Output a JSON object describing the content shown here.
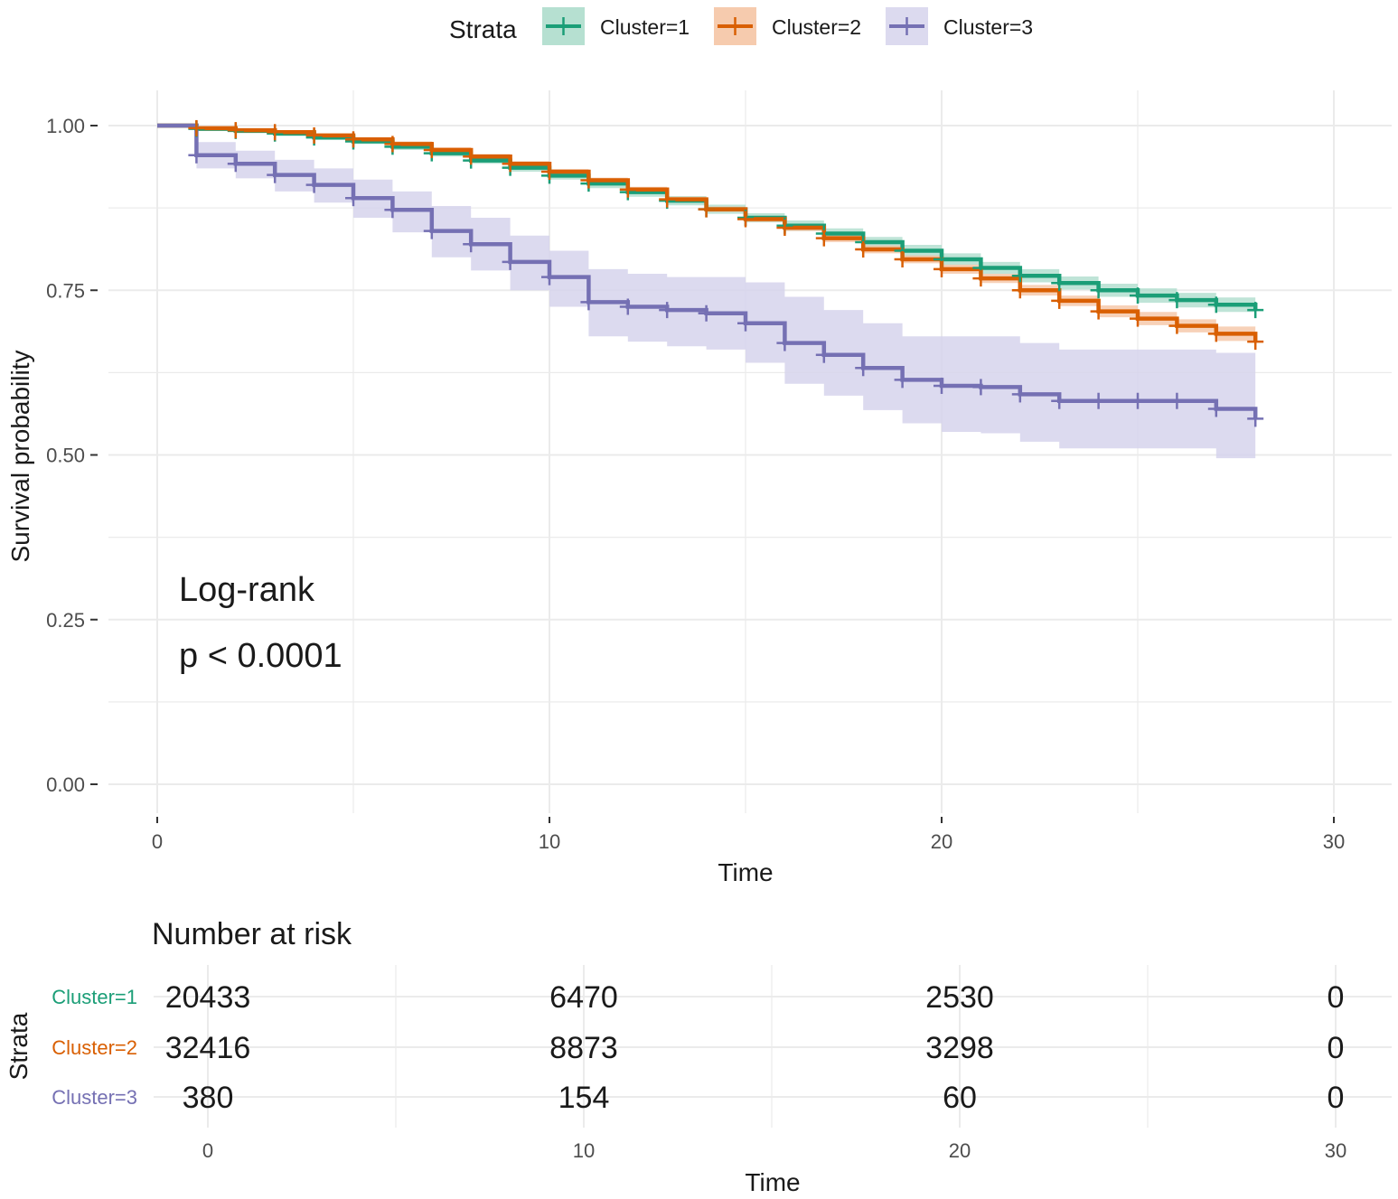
{
  "chart_data": {
    "type": "line",
    "subtype": "kaplan-meier survival curve",
    "ylabel": "Survival probability",
    "xlabel": "Time",
    "xlim": [
      0,
      30
    ],
    "ylim": [
      0,
      1
    ],
    "x_ticks": [
      "0",
      "10",
      "20",
      "30"
    ],
    "y_ticks": [
      "0.00",
      "0.25",
      "0.50",
      "0.75",
      "1.00"
    ],
    "grid": true,
    "legend": {
      "title": "Strata",
      "position": "top",
      "entries": [
        "Cluster=1",
        "Cluster=2",
        "Cluster=3"
      ]
    },
    "annotation": {
      "line1": "Log-rank",
      "line2": "p < 0.0001"
    },
    "series": [
      {
        "name": "Cluster=1",
        "color": "#1b9e77",
        "fill": "#a9dbc9",
        "times": [
          0,
          1,
          2,
          3,
          4,
          5,
          6,
          7,
          8,
          9,
          10,
          11,
          12,
          13,
          14,
          15,
          16,
          17,
          18,
          19,
          20,
          21,
          22,
          23,
          24,
          25,
          26,
          27,
          28
        ],
        "survival": [
          1.0,
          0.995,
          0.992,
          0.988,
          0.982,
          0.976,
          0.968,
          0.958,
          0.947,
          0.936,
          0.924,
          0.912,
          0.899,
          0.886,
          0.873,
          0.86,
          0.848,
          0.836,
          0.823,
          0.81,
          0.797,
          0.784,
          0.772,
          0.761,
          0.75,
          0.742,
          0.735,
          0.728,
          0.72
        ],
        "lower": [
          1.0,
          0.993,
          0.989,
          0.984,
          0.978,
          0.972,
          0.963,
          0.953,
          0.942,
          0.93,
          0.918,
          0.905,
          0.892,
          0.879,
          0.866,
          0.853,
          0.84,
          0.828,
          0.815,
          0.801,
          0.788,
          0.775,
          0.762,
          0.751,
          0.74,
          0.731,
          0.724,
          0.717,
          0.709
        ],
        "upper": [
          1.0,
          0.997,
          0.995,
          0.991,
          0.986,
          0.98,
          0.973,
          0.963,
          0.952,
          0.942,
          0.93,
          0.919,
          0.906,
          0.893,
          0.88,
          0.867,
          0.856,
          0.844,
          0.831,
          0.819,
          0.806,
          0.793,
          0.782,
          0.771,
          0.76,
          0.753,
          0.746,
          0.739,
          0.731
        ]
      },
      {
        "name": "Cluster=2",
        "color": "#d95f02",
        "fill": "#f4c2a0",
        "times": [
          0,
          1,
          2,
          3,
          4,
          5,
          6,
          7,
          8,
          9,
          10,
          11,
          12,
          13,
          14,
          15,
          16,
          17,
          18,
          19,
          20,
          21,
          22,
          23,
          24,
          25,
          26,
          27,
          28
        ],
        "survival": [
          1.0,
          0.996,
          0.993,
          0.99,
          0.985,
          0.979,
          0.972,
          0.963,
          0.953,
          0.942,
          0.93,
          0.917,
          0.903,
          0.888,
          0.873,
          0.858,
          0.845,
          0.829,
          0.812,
          0.797,
          0.782,
          0.768,
          0.75,
          0.734,
          0.718,
          0.707,
          0.696,
          0.684,
          0.672
        ],
        "lower": [
          1.0,
          0.995,
          0.991,
          0.988,
          0.982,
          0.976,
          0.968,
          0.959,
          0.949,
          0.938,
          0.926,
          0.913,
          0.899,
          0.884,
          0.869,
          0.854,
          0.84,
          0.823,
          0.806,
          0.791,
          0.775,
          0.761,
          0.742,
          0.726,
          0.709,
          0.697,
          0.686,
          0.673,
          0.66
        ],
        "upper": [
          1.0,
          0.997,
          0.995,
          0.992,
          0.988,
          0.982,
          0.976,
          0.967,
          0.957,
          0.946,
          0.934,
          0.921,
          0.907,
          0.892,
          0.877,
          0.862,
          0.85,
          0.835,
          0.818,
          0.803,
          0.789,
          0.775,
          0.758,
          0.742,
          0.727,
          0.717,
          0.706,
          0.695,
          0.684
        ]
      },
      {
        "name": "Cluster=3",
        "color": "#7570b3",
        "fill": "#d6d4ec",
        "times": [
          0,
          1,
          2,
          3,
          4,
          5,
          6,
          7,
          8,
          9,
          10,
          11,
          12,
          13,
          14,
          15,
          16,
          17,
          18,
          19,
          20,
          21,
          22,
          23,
          24,
          25,
          26,
          27,
          28
        ],
        "survival": [
          1.0,
          0.955,
          0.942,
          0.925,
          0.91,
          0.89,
          0.872,
          0.84,
          0.82,
          0.793,
          0.77,
          0.732,
          0.725,
          0.72,
          0.715,
          0.7,
          0.67,
          0.652,
          0.632,
          0.614,
          0.605,
          0.603,
          0.592,
          0.582,
          0.582,
          0.582,
          0.582,
          0.57,
          0.555
        ],
        "lower": [
          1.0,
          0.935,
          0.92,
          0.9,
          0.883,
          0.86,
          0.838,
          0.8,
          0.78,
          0.75,
          0.725,
          0.68,
          0.672,
          0.665,
          0.66,
          0.64,
          0.608,
          0.59,
          0.568,
          0.548,
          0.535,
          0.533,
          0.52,
          0.51,
          0.51,
          0.51,
          0.51,
          0.495,
          0.495
        ],
        "upper": [
          1.0,
          0.975,
          0.962,
          0.948,
          0.935,
          0.918,
          0.9,
          0.878,
          0.86,
          0.833,
          0.81,
          0.782,
          0.775,
          0.77,
          0.77,
          0.762,
          0.74,
          0.72,
          0.7,
          0.68,
          0.68,
          0.68,
          0.67,
          0.66,
          0.66,
          0.66,
          0.66,
          0.655,
          0.655
        ]
      }
    ],
    "risk_table": {
      "title": "Number at risk",
      "ylabel": "Strata",
      "xlabel": "Time",
      "times": [
        0,
        10,
        20,
        30
      ],
      "tick_labels": [
        "0",
        "10",
        "20",
        "30"
      ],
      "rows": [
        {
          "name": "Cluster=1",
          "color": "#1b9e77",
          "values": [
            "20433",
            "6470",
            "2530",
            "0"
          ]
        },
        {
          "name": "Cluster=2",
          "color": "#d95f02",
          "values": [
            "32416",
            "8873",
            "3298",
            "0"
          ]
        },
        {
          "name": "Cluster=3",
          "color": "#7570b3",
          "values": [
            "380",
            "154",
            "60",
            "0"
          ]
        }
      ]
    }
  }
}
